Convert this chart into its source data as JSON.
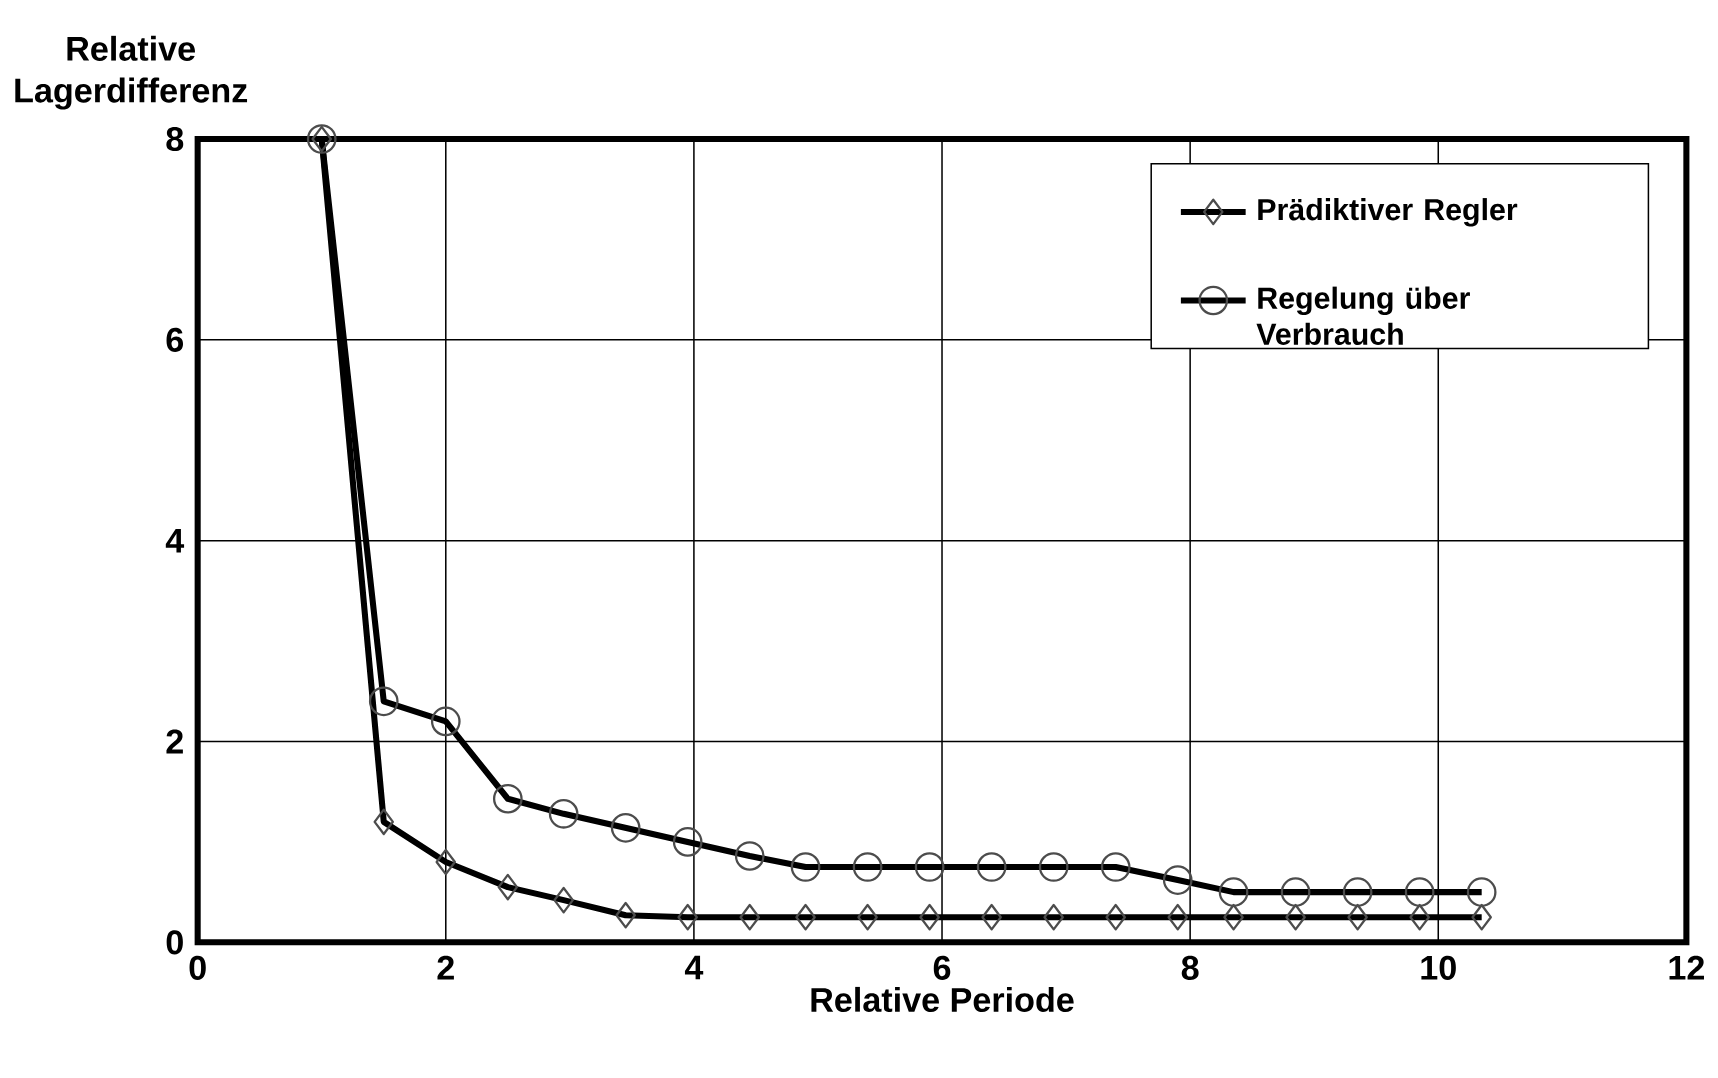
{
  "chart_data": {
    "type": "line",
    "xlabel": "Relative Periode",
    "ylabel": "Relative Lagerdifferenz",
    "xlim": [
      0,
      12
    ],
    "ylim": [
      0,
      8
    ],
    "xticks": [
      0,
      2,
      4,
      6,
      8,
      10,
      12
    ],
    "yticks": [
      0,
      2,
      4,
      6,
      8
    ],
    "grid": true,
    "legend": "top right",
    "line_style": "solid",
    "x": [
      1,
      1.5,
      2,
      2.5,
      2.95,
      3.45,
      3.95,
      4.45,
      4.9,
      5.4,
      5.9,
      6.4,
      6.9,
      7.4,
      7.9,
      8.35,
      8.85,
      9.35,
      9.85,
      10.35
    ],
    "series": [
      {
        "name": "Prädiktiver Regler",
        "color": "#000000",
        "marker": "diamond",
        "values": [
          8,
          1.2,
          0.8,
          0.55,
          0.42,
          0.27,
          0.25,
          0.25,
          0.25,
          0.25,
          0.25,
          0.25,
          0.25,
          0.25,
          0.25,
          0.25,
          0.25,
          0.25,
          0.25,
          0.25
        ]
      },
      {
        "name": "Regelung über Verbrauch",
        "color": "#000000",
        "marker": "circle",
        "values": [
          8,
          2.4,
          2.2,
          1.43,
          1.28,
          1.14,
          1.0,
          0.86,
          0.75,
          0.75,
          0.75,
          0.75,
          0.75,
          0.75,
          0.62,
          0.5,
          0.5,
          0.5,
          0.5,
          0.5
        ]
      }
    ]
  }
}
